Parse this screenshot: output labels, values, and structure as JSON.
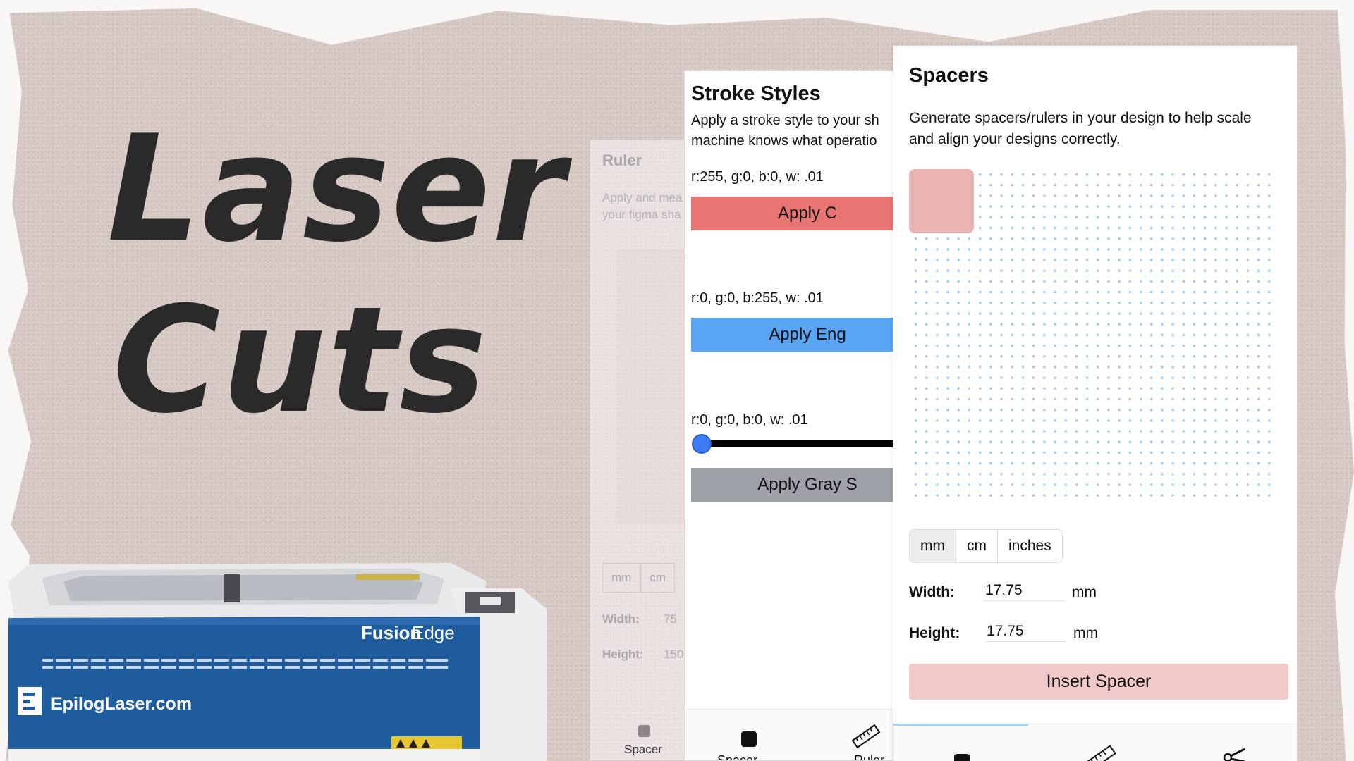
{
  "headline": {
    "line1": "Laser",
    "line2": "Cuts"
  },
  "machine": {
    "brand_text": "EpilogLaser.com",
    "model_text_bold": "Fusion",
    "model_text_light": "Edge"
  },
  "ruler_panel": {
    "title": "Ruler",
    "description": "Apply and mea\nyour figma sha",
    "units": [
      "mm",
      "cm"
    ],
    "width_label": "Width:",
    "width_value": "75",
    "height_label": "Height:",
    "height_value": "150",
    "tab_label": "Spacer"
  },
  "stroke_panel": {
    "title": "Stroke Styles",
    "description": "Apply a stroke style to your sh\nmachine knows what operatio",
    "cut": {
      "label": "r:255, g:0, b:0, w: .01",
      "button": "Apply C",
      "color": "#e87572"
    },
    "engrave": {
      "label": "r:0, g:0, b:255, w: .01",
      "button": "Apply Eng",
      "color": "#5aa6f5"
    },
    "gray": {
      "label": "r:0, g:0, b:0, w: .01",
      "button": "Apply Gray S",
      "color": "#9fa1a8",
      "slider_level": 0
    },
    "tabs": [
      "Spacer",
      "Ruler"
    ]
  },
  "spacer_panel": {
    "title": "Spacers",
    "description": "Generate spacers/rulers in your design to help scale\nand align your designs correctly.",
    "swatch_color": "#e9b3b2",
    "units": [
      "mm",
      "cm",
      "inches"
    ],
    "selected_unit": "mm",
    "width_label": "Width:",
    "width_value": "17.75",
    "width_unit": "mm",
    "height_label": "Height:",
    "height_value": "17.75",
    "height_unit": "mm",
    "insert_button": "Insert Spacer",
    "insert_color": "#f2c9c9",
    "active_tab_color": "#9fd0f5"
  }
}
